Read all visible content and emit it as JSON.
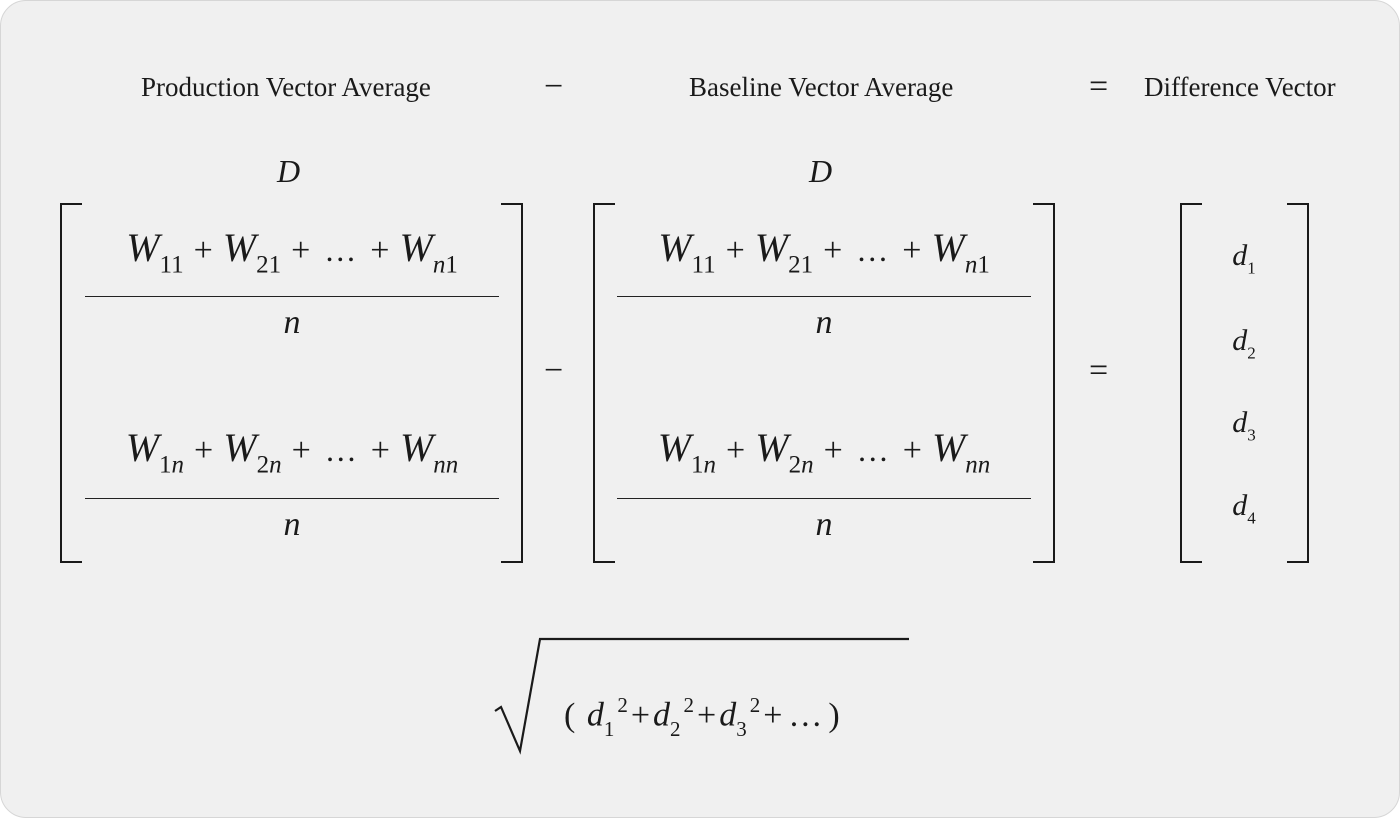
{
  "header": {
    "production": "Production Vector Average",
    "minus": "−",
    "baseline": "Baseline Vector Average",
    "equals": "=",
    "difference": "Difference Vector"
  },
  "matrix_left": {
    "label": "D",
    "row1": {
      "t1": "W",
      "s1": "11",
      "t2": "W",
      "s2": "21",
      "t3": "W",
      "s3_italic": "n",
      "s3": "1",
      "plus": "+",
      "dots": "…",
      "den": "n"
    },
    "row2": {
      "t1": "W",
      "s1": "1",
      "s1_italic": "n",
      "t2": "W",
      "s2": "2",
      "s2_italic": "n",
      "t3": "W",
      "s3_italic": "nn",
      "plus": "+",
      "dots": "…",
      "den": "n"
    }
  },
  "matrix_right": {
    "label": "D",
    "row1": {
      "t1": "W",
      "s1": "11",
      "t2": "W",
      "s2": "21",
      "t3": "W",
      "s3_italic": "n",
      "s3": "1",
      "plus": "+",
      "dots": "…",
      "den": "n"
    },
    "row2": {
      "t1": "W",
      "s1": "1",
      "s1_italic": "n",
      "t2": "W",
      "s2": "2",
      "s2_italic": "n",
      "t3": "W",
      "s3_italic": "nn",
      "plus": "+",
      "dots": "…",
      "den": "n"
    }
  },
  "operators": {
    "minus": "−",
    "equals": "="
  },
  "difference_vector": [
    {
      "sym": "d",
      "sub": "1"
    },
    {
      "sym": "d",
      "sub": "2"
    },
    {
      "sym": "d",
      "sub": "3"
    },
    {
      "sym": "d",
      "sub": "4"
    }
  ],
  "norm": {
    "open": "(",
    "close": ")",
    "terms": [
      {
        "sym": "d",
        "sub": "1",
        "sup": "2"
      },
      {
        "sym": "d",
        "sub": "2",
        "sup": "2"
      },
      {
        "sym": "d",
        "sub": "3",
        "sup": "2"
      }
    ],
    "plus": "+",
    "dots": "…"
  }
}
